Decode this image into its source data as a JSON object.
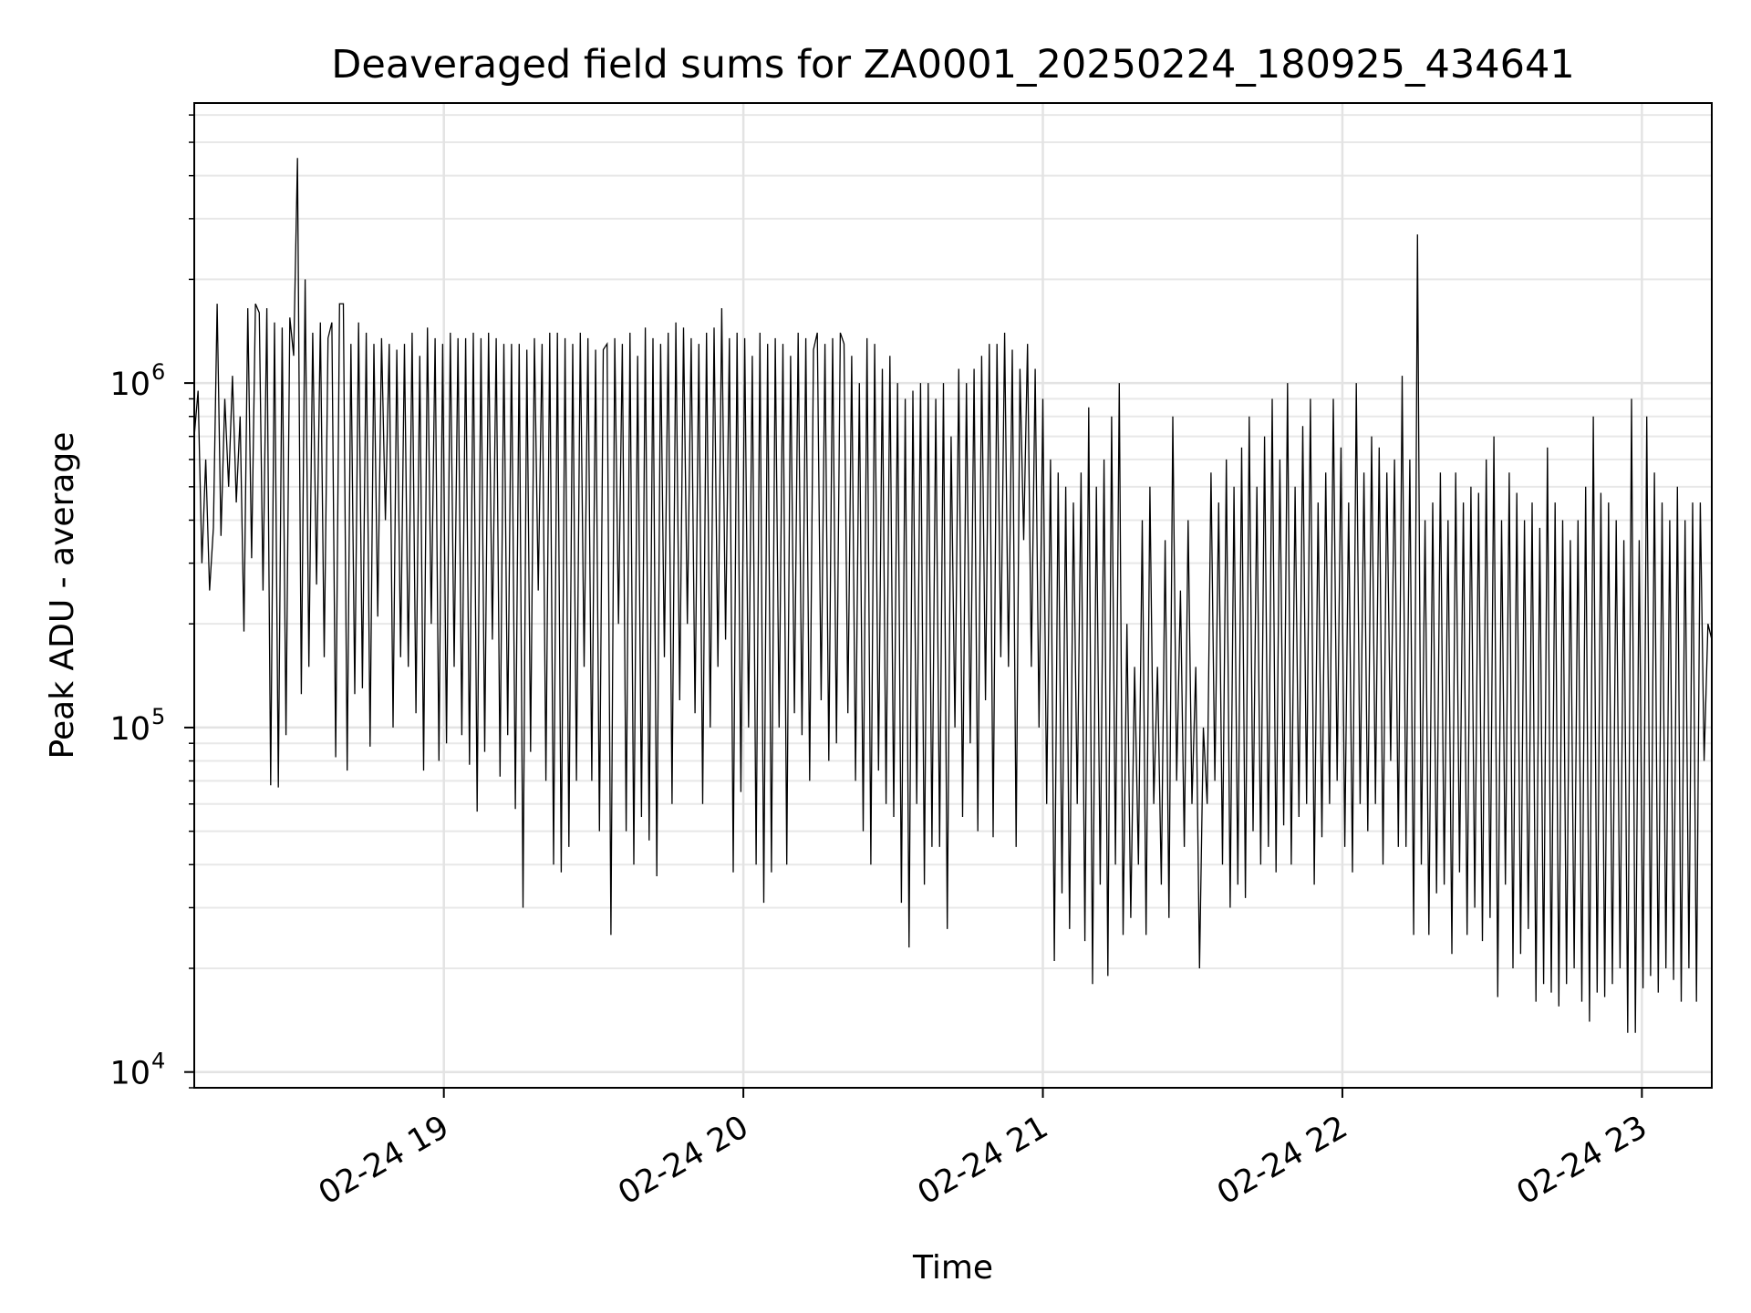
{
  "chart_data": {
    "type": "line",
    "title": "Deaveraged field sums for ZA0001_20250224_180925_434641",
    "xlabel": "Time",
    "ylabel": "Peak ADU - average",
    "y_scale": "log",
    "ylim": [
      9000,
      6500000
    ],
    "xlim": [
      "2025-02-24 18:10",
      "2025-02-24 23:14"
    ],
    "grid": true,
    "line_color": "#000000",
    "x_ticks": [
      {
        "value": "2025-02-24 19:00",
        "label": "02-24 19"
      },
      {
        "value": "2025-02-24 20:00",
        "label": "02-24 20"
      },
      {
        "value": "2025-02-24 21:00",
        "label": "02-24 21"
      },
      {
        "value": "2025-02-24 22:00",
        "label": "02-24 22"
      },
      {
        "value": "2025-02-24 23:00",
        "label": "02-24 23"
      }
    ],
    "y_ticks": [
      {
        "value": 10000,
        "base": "10",
        "exp": "4"
      },
      {
        "value": 100000,
        "base": "10",
        "exp": "5"
      },
      {
        "value": 1000000,
        "base": "10",
        "exp": "6"
      }
    ],
    "series": [
      {
        "x_start": "2025-02-24 18:10",
        "x_end": "2025-02-24 23:14",
        "values": [
          700000,
          950000,
          300000,
          600000,
          250000,
          380000,
          1700000,
          360000,
          900000,
          500000,
          1050000,
          450000,
          800000,
          190000,
          1650000,
          310000,
          1700000,
          1600000,
          250000,
          1650000,
          68000,
          1500000,
          67000,
          1450000,
          95000,
          1550000,
          1200000,
          4500000,
          125000,
          2000000,
          150000,
          1400000,
          260000,
          1500000,
          160000,
          1350000,
          1500000,
          82000,
          1700000,
          1700000,
          75000,
          1300000,
          125000,
          1500000,
          130000,
          1400000,
          88000,
          1300000,
          210000,
          1350000,
          400000,
          1300000,
          100000,
          1250000,
          160000,
          1300000,
          150000,
          1400000,
          110000,
          1200000,
          75000,
          1450000,
          200000,
          1350000,
          80000,
          1300000,
          90000,
          1400000,
          150000,
          1350000,
          95000,
          1350000,
          78000,
          1400000,
          57000,
          1350000,
          85000,
          1400000,
          180000,
          1350000,
          72000,
          1300000,
          95000,
          1300000,
          58000,
          1300000,
          30000,
          1250000,
          85000,
          1350000,
          250000,
          1300000,
          70000,
          1400000,
          40000,
          1400000,
          38000,
          1350000,
          45000,
          1300000,
          70000,
          1400000,
          150000,
          1350000,
          70000,
          1250000,
          50000,
          1250000,
          1300000,
          25000,
          1350000,
          200000,
          1300000,
          50000,
          1400000,
          40000,
          1200000,
          55000,
          1450000,
          47000,
          1350000,
          37000,
          1300000,
          160000,
          1400000,
          60000,
          1500000,
          120000,
          1450000,
          200000,
          1350000,
          110000,
          1300000,
          60000,
          1400000,
          100000,
          1450000,
          150000,
          1650000,
          180000,
          1350000,
          38000,
          1400000,
          65000,
          1350000,
          100000,
          1200000,
          40000,
          1400000,
          31000,
          1300000,
          38000,
          1350000,
          100000,
          1300000,
          40000,
          1200000,
          110000,
          1400000,
          95000,
          1350000,
          70000,
          1250000,
          1400000,
          120000,
          1300000,
          80000,
          1350000,
          90000,
          1400000,
          1300000,
          110000,
          1200000,
          70000,
          1000000,
          50000,
          1350000,
          40000,
          1300000,
          75000,
          1100000,
          60000,
          1200000,
          55000,
          1000000,
          31000,
          900000,
          23000,
          950000,
          60000,
          1000000,
          35000,
          1000000,
          45000,
          900000,
          45000,
          1000000,
          26000,
          700000,
          100000,
          1100000,
          55000,
          1000000,
          90000,
          1100000,
          50000,
          1200000,
          120000,
          1300000,
          48000,
          1300000,
          160000,
          1400000,
          150000,
          1250000,
          45000,
          1100000,
          350000,
          1300000,
          150000,
          1100000,
          100000,
          900000,
          60000,
          600000,
          21000,
          550000,
          33000,
          500000,
          26000,
          450000,
          60000,
          550000,
          24000,
          850000,
          18000,
          500000,
          35000,
          600000,
          19000,
          800000,
          40000,
          1000000,
          25000,
          200000,
          28000,
          150000,
          40000,
          400000,
          25000,
          500000,
          60000,
          150000,
          35000,
          350000,
          28000,
          800000,
          70000,
          250000,
          45000,
          400000,
          60000,
          150000,
          20000,
          100000,
          60000,
          550000,
          70000,
          450000,
          40000,
          600000,
          30000,
          500000,
          35000,
          650000,
          32000,
          800000,
          50000,
          500000,
          40000,
          700000,
          45000,
          900000,
          38000,
          600000,
          52000,
          1000000,
          40000,
          500000,
          55000,
          750000,
          60000,
          900000,
          35000,
          450000,
          48000,
          550000,
          60000,
          900000,
          70000,
          650000,
          45000,
          450000,
          38000,
          1000000,
          60000,
          550000,
          50000,
          700000,
          60000,
          650000,
          40000,
          550000,
          80000,
          600000,
          45000,
          1050000,
          45000,
          600000,
          25000,
          2700000,
          40000,
          400000,
          25000,
          450000,
          33000,
          550000,
          35000,
          400000,
          22000,
          550000,
          38000,
          450000,
          25000,
          500000,
          30000,
          480000,
          24000,
          600000,
          28000,
          700000,
          16500,
          400000,
          35000,
          550000,
          20000,
          480000,
          22000,
          400000,
          26000,
          450000,
          16000,
          380000,
          18000,
          650000,
          17000,
          450000,
          15500,
          400000,
          18000,
          350000,
          20000,
          400000,
          16000,
          500000,
          14000,
          800000,
          17000,
          480000,
          16500,
          450000,
          18000,
          400000,
          20000,
          350000,
          13000,
          900000,
          13000,
          350000,
          17500,
          800000,
          19000,
          550000,
          17000,
          450000,
          20000,
          400000,
          18500,
          500000,
          16000,
          400000,
          20000,
          450000,
          16000,
          450000,
          80000,
          200000,
          180000
        ]
      }
    ]
  }
}
